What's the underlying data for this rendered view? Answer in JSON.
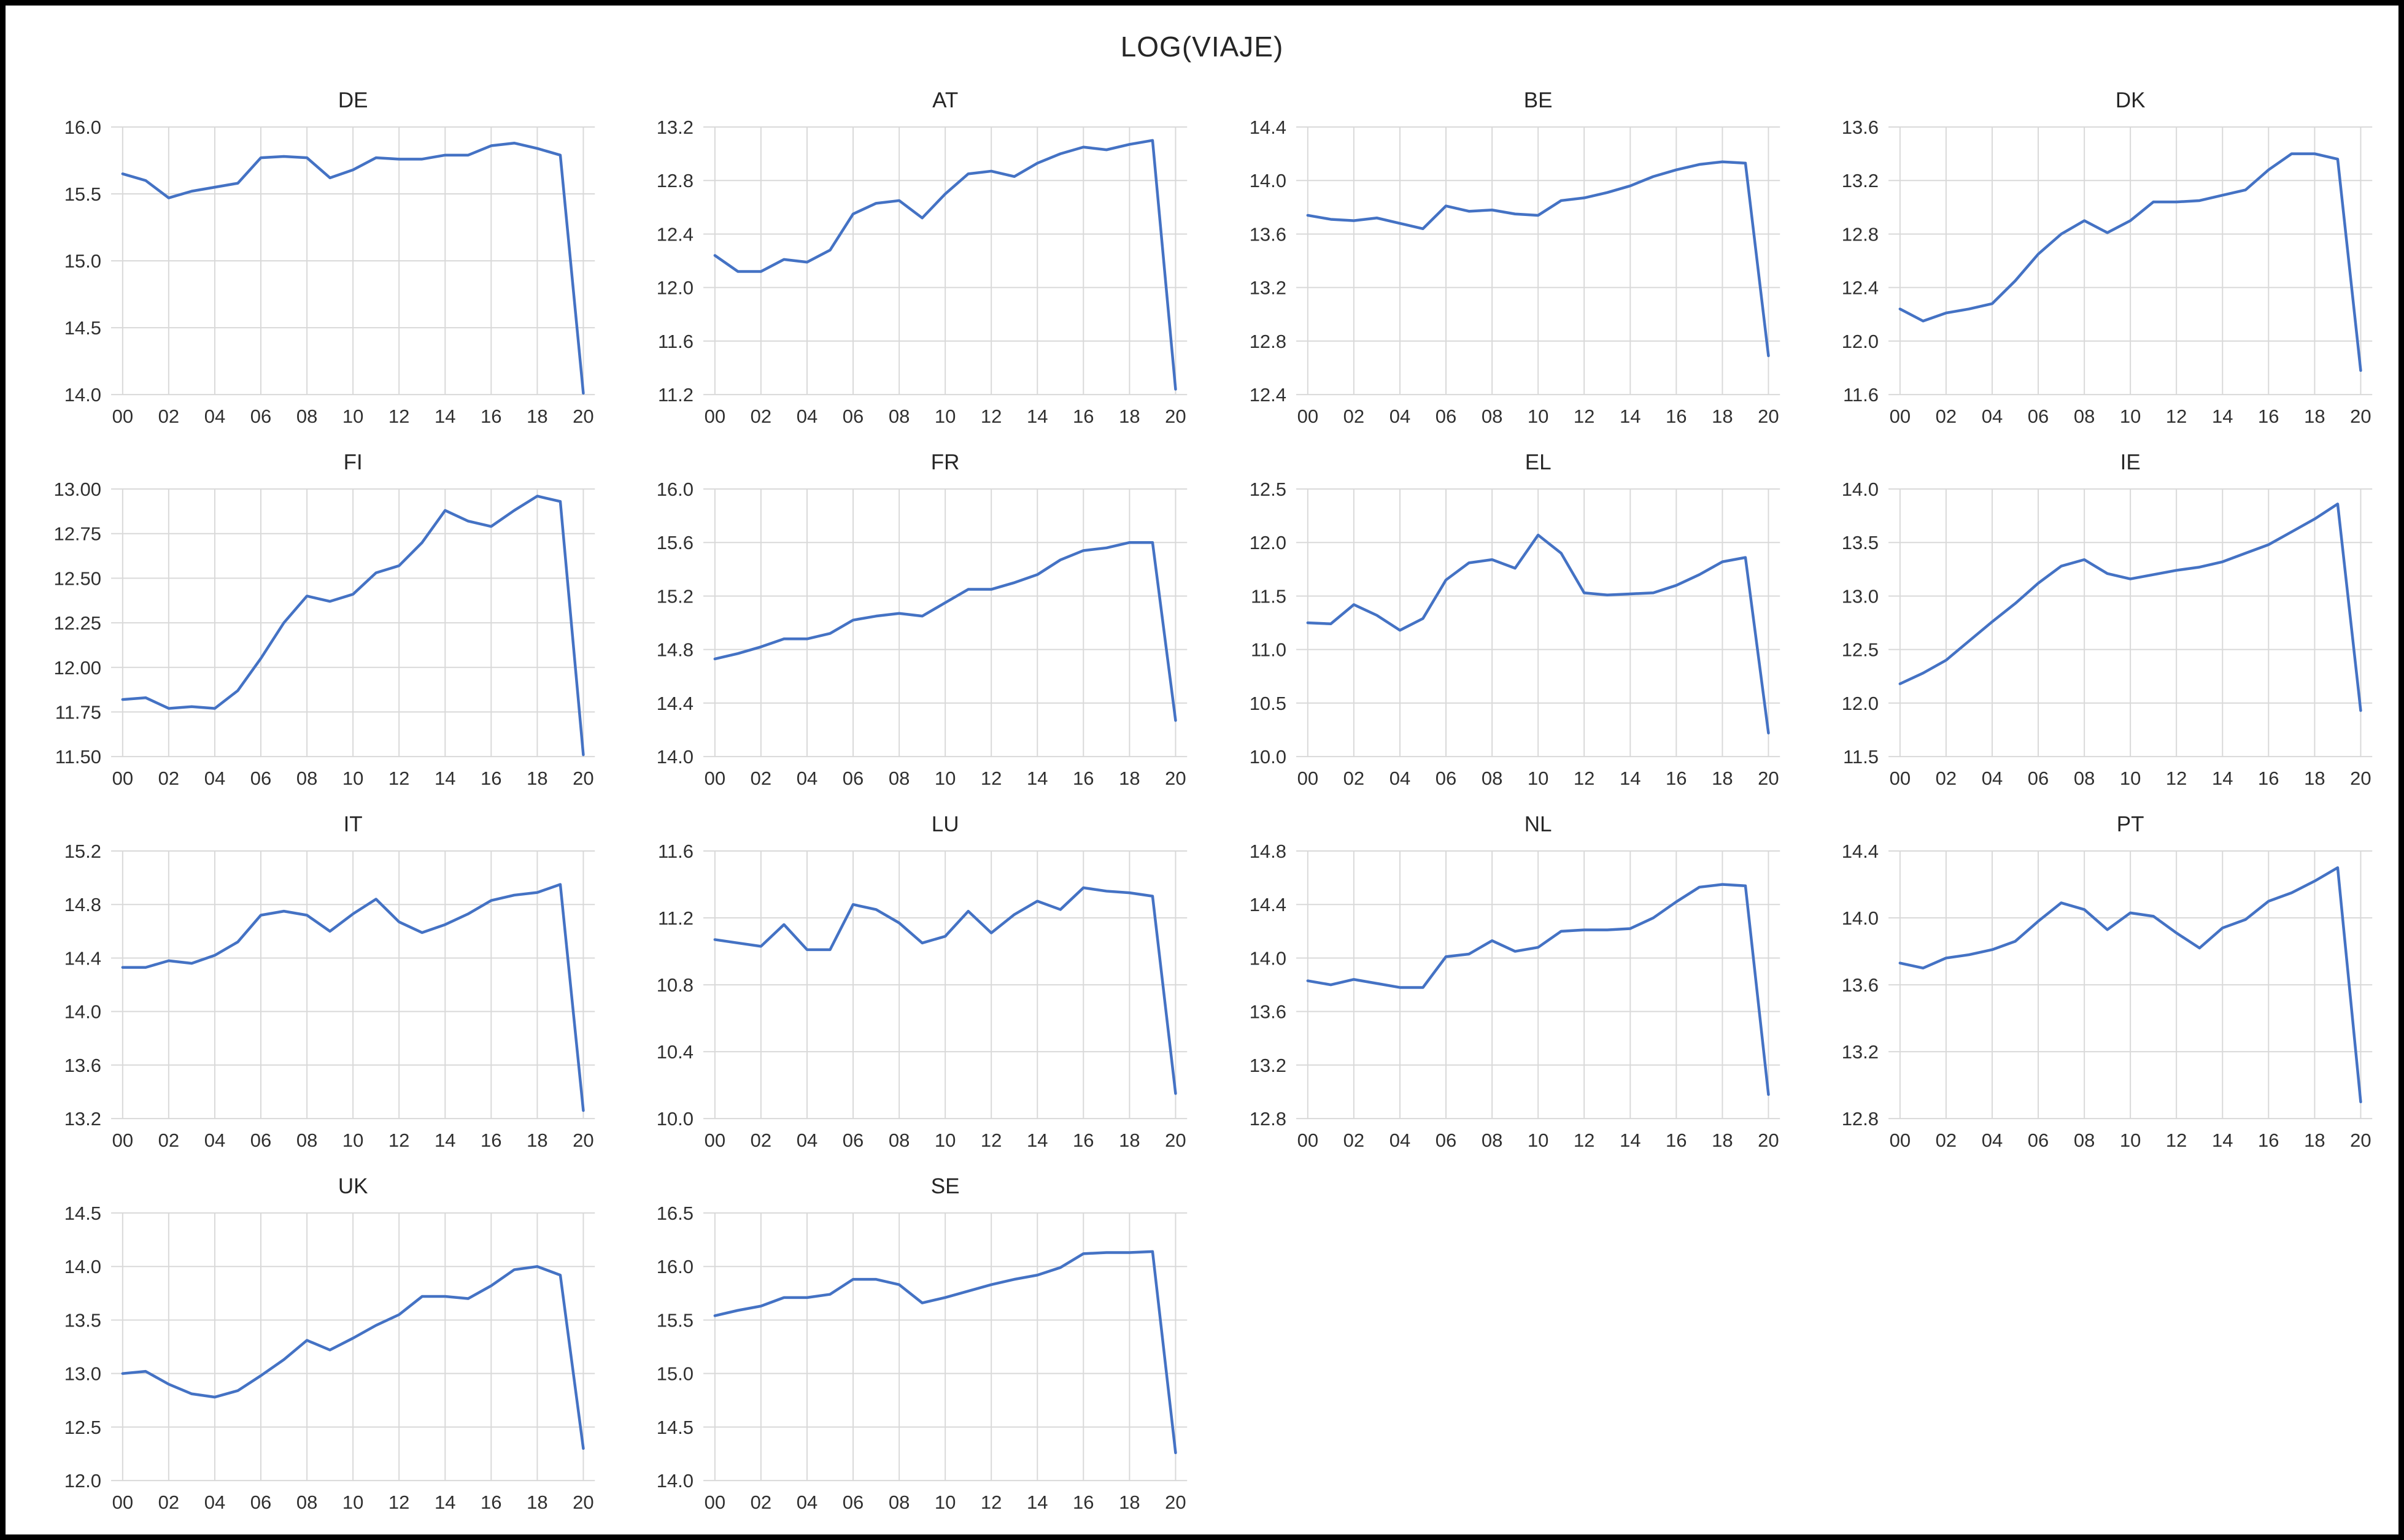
{
  "figure": {
    "title": "LOG(VIAJE)",
    "line_color": "#4472C4",
    "grid_color": "#D9D9D9",
    "tick_text_color": "#303030",
    "title_text_color": "#262626",
    "border_color": "#000000",
    "background": "#FFFFFF"
  },
  "chart_data": {
    "type": "line",
    "subtype": "small-multiples",
    "title": "LOG(VIAJE)",
    "layout": {
      "rows": 4,
      "cols": 4,
      "legend": "none",
      "grid": "on"
    },
    "categories": [
      "00",
      "01",
      "02",
      "03",
      "04",
      "05",
      "06",
      "07",
      "08",
      "09",
      "10",
      "11",
      "12",
      "13",
      "14",
      "15",
      "16",
      "17",
      "18",
      "19",
      "20"
    ],
    "x_tick_labels": [
      "00",
      "02",
      "04",
      "06",
      "08",
      "10",
      "12",
      "14",
      "16",
      "18",
      "20"
    ],
    "panels": [
      {
        "title": "DE",
        "ylim": [
          14.0,
          16.0
        ],
        "y_decimals": 1,
        "yticks": [
          16.0,
          15.5,
          15.0,
          14.5,
          14.0
        ],
        "values": [
          15.65,
          15.6,
          15.47,
          15.52,
          15.55,
          15.58,
          15.77,
          15.78,
          15.77,
          15.62,
          15.68,
          15.77,
          15.76,
          15.76,
          15.79,
          15.79,
          15.86,
          15.88,
          15.84,
          15.79,
          14.01
        ]
      },
      {
        "title": "AT",
        "ylim": [
          11.2,
          13.2
        ],
        "y_decimals": 1,
        "yticks": [
          13.2,
          12.8,
          12.4,
          12.0,
          11.6,
          11.2
        ],
        "values": [
          12.24,
          12.12,
          12.12,
          12.21,
          12.19,
          12.28,
          12.55,
          12.63,
          12.65,
          12.52,
          12.7,
          12.85,
          12.87,
          12.83,
          12.93,
          13.0,
          13.05,
          13.03,
          13.07,
          13.1,
          11.24
        ]
      },
      {
        "title": "BE",
        "ylim": [
          12.4,
          14.4
        ],
        "y_decimals": 1,
        "yticks": [
          14.4,
          14.0,
          13.6,
          13.2,
          12.8,
          12.4
        ],
        "values": [
          13.74,
          13.71,
          13.7,
          13.72,
          13.68,
          13.64,
          13.81,
          13.77,
          13.78,
          13.75,
          13.74,
          13.85,
          13.87,
          13.91,
          13.96,
          14.03,
          14.08,
          14.12,
          14.14,
          14.13,
          12.69
        ]
      },
      {
        "title": "DK",
        "ylim": [
          11.6,
          13.6
        ],
        "y_decimals": 1,
        "yticks": [
          13.6,
          13.2,
          12.8,
          12.4,
          12.0,
          11.6
        ],
        "values": [
          12.24,
          12.15,
          12.21,
          12.24,
          12.28,
          12.45,
          12.65,
          12.8,
          12.9,
          12.81,
          12.9,
          13.04,
          13.04,
          13.05,
          13.09,
          13.13,
          13.28,
          13.4,
          13.4,
          13.36,
          11.78
        ]
      },
      {
        "title": "FI",
        "ylim": [
          11.5,
          13.0
        ],
        "y_decimals": 2,
        "yticks": [
          13.0,
          12.75,
          12.5,
          12.25,
          12.0,
          11.75,
          11.5
        ],
        "values": [
          11.82,
          11.83,
          11.77,
          11.78,
          11.77,
          11.87,
          12.05,
          12.25,
          12.4,
          12.37,
          12.41,
          12.53,
          12.57,
          12.7,
          12.88,
          12.82,
          12.79,
          12.88,
          12.96,
          12.93,
          11.51
        ]
      },
      {
        "title": "FR",
        "ylim": [
          14.0,
          16.0
        ],
        "y_decimals": 1,
        "yticks": [
          16.0,
          15.6,
          15.2,
          14.8,
          14.4,
          14.0
        ],
        "values": [
          14.73,
          14.77,
          14.82,
          14.88,
          14.88,
          14.92,
          15.02,
          15.05,
          15.07,
          15.05,
          15.15,
          15.25,
          15.25,
          15.3,
          15.36,
          15.47,
          15.54,
          15.56,
          15.6,
          15.6,
          14.27
        ]
      },
      {
        "title": "EL",
        "ylim": [
          10.0,
          12.5
        ],
        "y_decimals": 1,
        "yticks": [
          12.5,
          12.0,
          11.5,
          11.0,
          10.5,
          10.0
        ],
        "values": [
          11.25,
          11.24,
          11.42,
          11.32,
          11.18,
          11.29,
          11.65,
          11.81,
          11.84,
          11.76,
          12.07,
          11.9,
          11.53,
          11.51,
          11.52,
          11.53,
          11.6,
          11.7,
          11.82,
          11.86,
          10.22
        ]
      },
      {
        "title": "IE",
        "ylim": [
          11.5,
          14.0
        ],
        "y_decimals": 1,
        "yticks": [
          14.0,
          13.5,
          13.0,
          12.5,
          12.0,
          11.5
        ],
        "values": [
          12.18,
          12.28,
          12.4,
          12.58,
          12.76,
          12.93,
          13.12,
          13.28,
          13.34,
          13.21,
          13.16,
          13.2,
          13.24,
          13.27,
          13.32,
          13.4,
          13.48,
          13.6,
          13.72,
          13.86,
          11.93
        ]
      },
      {
        "title": "IT",
        "ylim": [
          13.2,
          15.2
        ],
        "y_decimals": 1,
        "yticks": [
          15.2,
          14.8,
          14.4,
          14.0,
          13.6,
          13.2
        ],
        "values": [
          14.33,
          14.33,
          14.38,
          14.36,
          14.42,
          14.52,
          14.72,
          14.75,
          14.72,
          14.6,
          14.73,
          14.84,
          14.67,
          14.59,
          14.65,
          14.73,
          14.83,
          14.87,
          14.89,
          14.95,
          13.26
        ]
      },
      {
        "title": "LU",
        "ylim": [
          10.0,
          11.6
        ],
        "y_decimals": 1,
        "yticks": [
          11.6,
          11.2,
          10.8,
          10.4,
          10.0
        ],
        "values": [
          11.07,
          11.05,
          11.03,
          11.16,
          11.01,
          11.01,
          11.28,
          11.25,
          11.17,
          11.05,
          11.09,
          11.24,
          11.11,
          11.22,
          11.3,
          11.25,
          11.38,
          11.36,
          11.35,
          11.33,
          10.15
        ]
      },
      {
        "title": "NL",
        "ylim": [
          12.8,
          14.8
        ],
        "y_decimals": 1,
        "yticks": [
          14.8,
          14.4,
          14.0,
          13.6,
          13.2,
          12.8
        ],
        "values": [
          13.83,
          13.8,
          13.84,
          13.81,
          13.78,
          13.78,
          14.01,
          14.03,
          14.13,
          14.05,
          14.08,
          14.2,
          14.21,
          14.21,
          14.22,
          14.3,
          14.42,
          14.53,
          14.55,
          14.54,
          12.98
        ]
      },
      {
        "title": "PT",
        "ylim": [
          12.8,
          14.4
        ],
        "y_decimals": 1,
        "yticks": [
          14.4,
          14.0,
          13.6,
          13.2,
          12.8
        ],
        "values": [
          13.73,
          13.7,
          13.76,
          13.78,
          13.81,
          13.86,
          13.98,
          14.09,
          14.05,
          13.93,
          14.03,
          14.01,
          13.91,
          13.82,
          13.94,
          13.99,
          14.1,
          14.15,
          14.22,
          14.3,
          12.9
        ]
      },
      {
        "title": "UK",
        "ylim": [
          12.0,
          14.5
        ],
        "y_decimals": 1,
        "yticks": [
          14.5,
          14.0,
          13.5,
          13.0,
          12.5,
          12.0
        ],
        "values": [
          13.0,
          13.02,
          12.9,
          12.81,
          12.78,
          12.84,
          12.98,
          13.13,
          13.31,
          13.22,
          13.33,
          13.45,
          13.55,
          13.72,
          13.72,
          13.7,
          13.82,
          13.97,
          14.0,
          13.92,
          12.3
        ]
      },
      {
        "title": "SE",
        "ylim": [
          14.0,
          16.5
        ],
        "y_decimals": 1,
        "yticks": [
          16.5,
          16.0,
          15.5,
          15.0,
          14.5,
          14.0
        ],
        "values": [
          15.54,
          15.59,
          15.63,
          15.71,
          15.71,
          15.74,
          15.88,
          15.88,
          15.83,
          15.66,
          15.71,
          15.77,
          15.83,
          15.88,
          15.92,
          15.99,
          16.12,
          16.13,
          16.13,
          16.14,
          14.26
        ]
      }
    ]
  }
}
